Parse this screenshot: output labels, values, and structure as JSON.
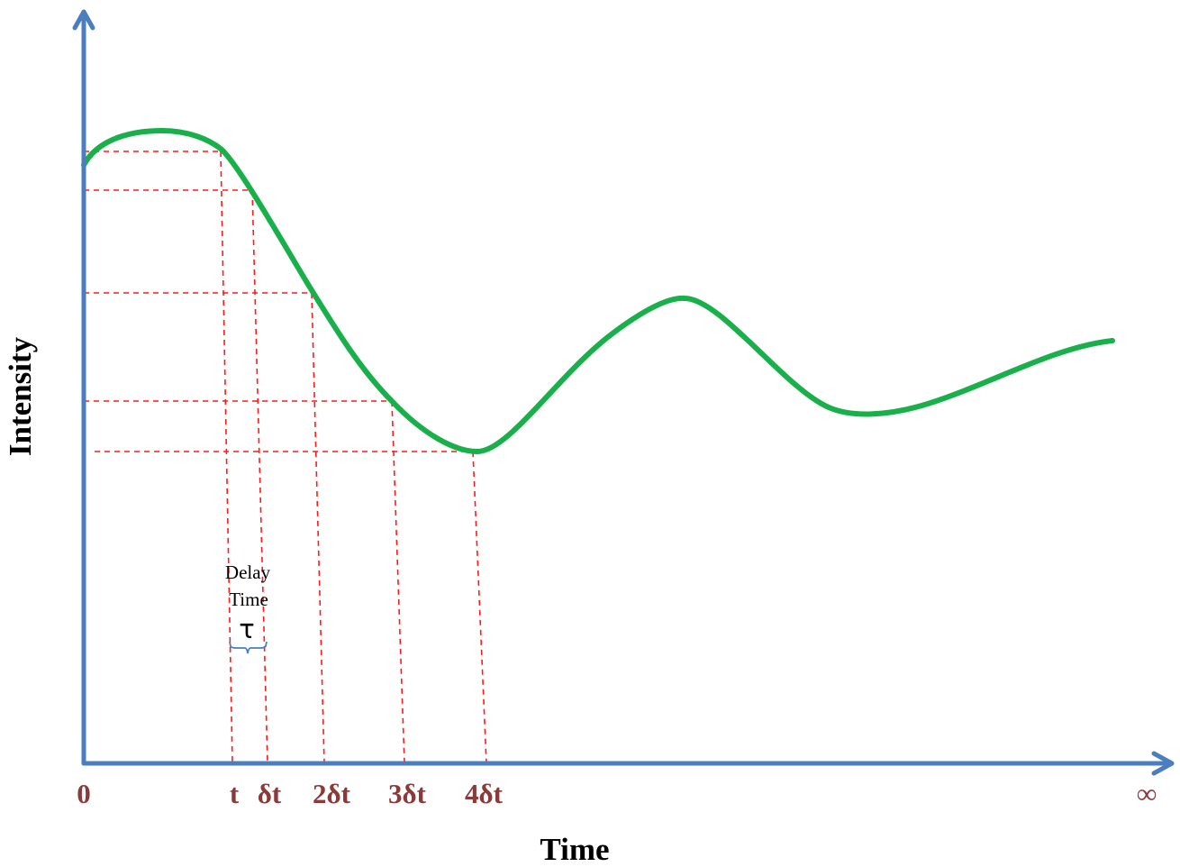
{
  "axes": {
    "x_title": "Time",
    "y_title": "Intensity",
    "color": "#4a7ebf"
  },
  "ticks": [
    {
      "id": "zero",
      "label": "0"
    },
    {
      "id": "t",
      "label": "t"
    },
    {
      "id": "dt",
      "label": "δt"
    },
    {
      "id": "2dt",
      "label": "2δt"
    },
    {
      "id": "3dt",
      "label": "3δt"
    },
    {
      "id": "4dt",
      "label": "4δt"
    },
    {
      "id": "inf",
      "label": "∞"
    }
  ],
  "annotation": {
    "line1": "Delay",
    "line2": "Time",
    "symbol": "τ"
  },
  "colors": {
    "curve": "#19b04b",
    "guides": "#ff1a1a",
    "tick_labels": "#8b3a3a"
  }
}
